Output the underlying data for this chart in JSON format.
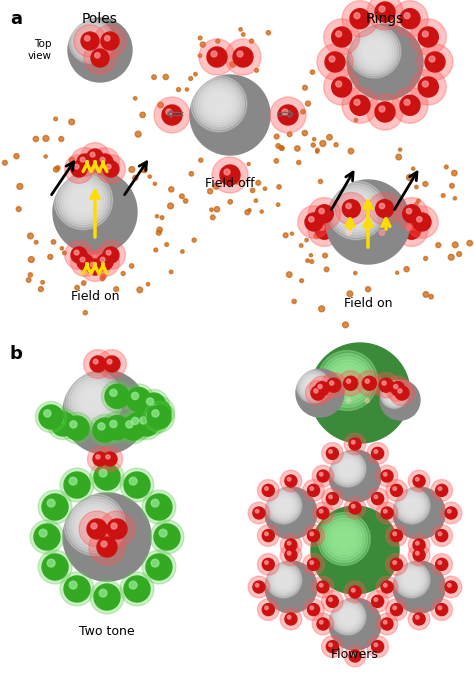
{
  "bg_color": "#ffffff",
  "gray_color": "#888888",
  "gray_light": "#cccccc",
  "red_color": "#cc1111",
  "red_glow": "#ff5555",
  "green_color": "#33aa22",
  "green_glow": "#55cc44",
  "green_large": "#3a8a3a",
  "orange_dot": "#cc6611",
  "yellow_color": "#ffdd00",
  "label_a": "a",
  "label_b": "b",
  "label_poles": "Poles",
  "label_rings": "Rings",
  "label_field_off": "Field off",
  "label_field_on": "Field on",
  "label_top_view": "Top\nview",
  "label_two_tone": "Two tone",
  "label_flowers": "Flowers"
}
